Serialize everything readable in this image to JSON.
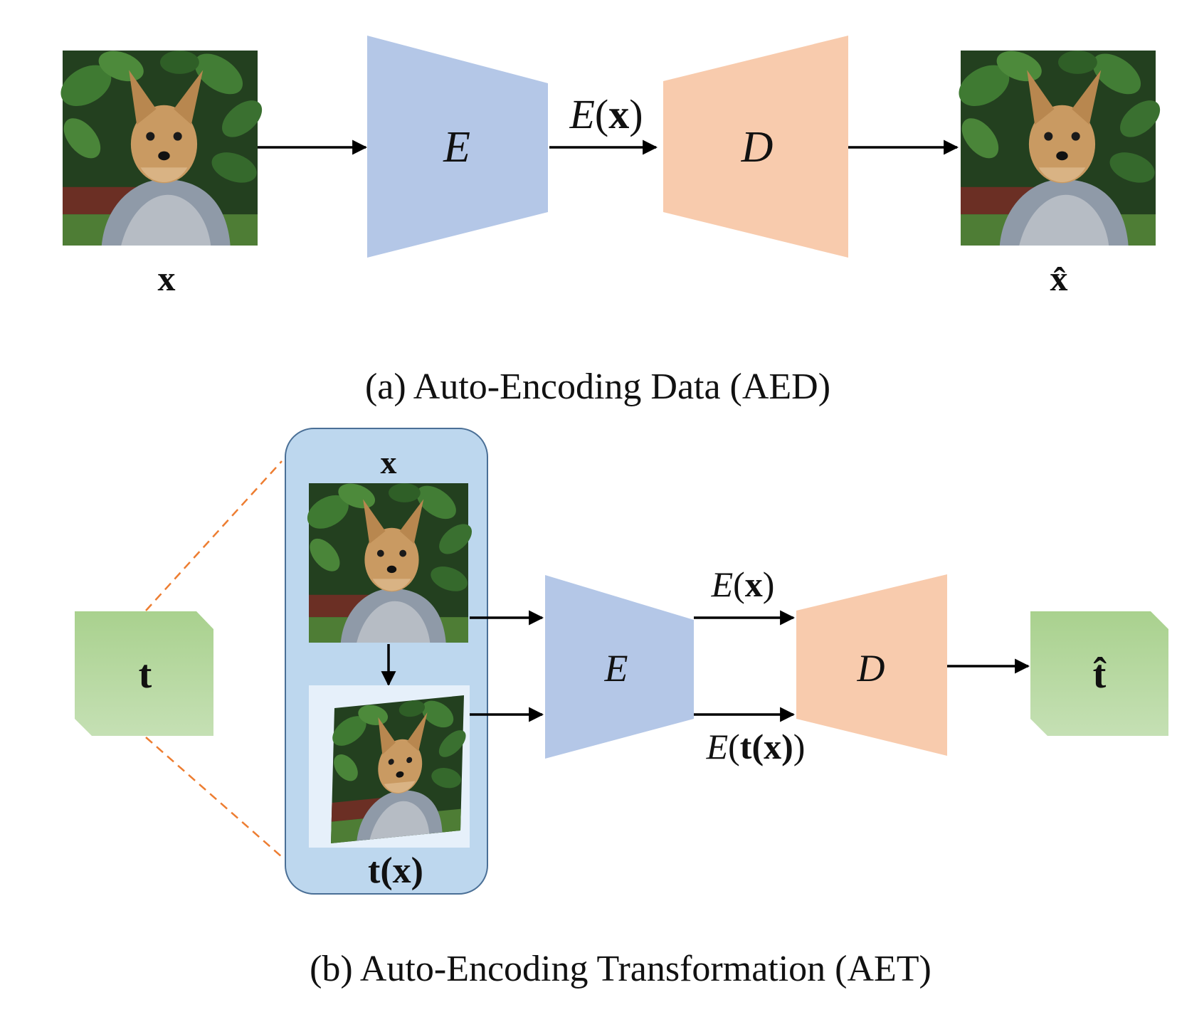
{
  "panel_a": {
    "input_label": "x",
    "encoder_label": "E",
    "latent_label_fn": "E",
    "latent_label_arg": "x",
    "decoder_label": "D",
    "output_label": "x̂",
    "caption": "(a) Auto-Encoding Data (AED)"
  },
  "panel_b": {
    "transform_label": "t",
    "original_label": "x",
    "transformed_fn": "t",
    "transformed_arg": "x",
    "encoder_label": "E",
    "latent_top_fn": "E",
    "latent_top_arg": "x",
    "latent_bottom_fn": "E",
    "latent_bottom_t": "t",
    "latent_bottom_arg": "x",
    "decoder_label": "D",
    "output_label": "t̂",
    "caption": "(b) Auto-Encoding Transformation (AET)"
  },
  "colors": {
    "encoder": "#b4c7e7",
    "decoder": "#f8cbad",
    "transform_box": "#a9d18e",
    "container": "#bdd7ee",
    "container_border": "#4a6f96",
    "dashed_line": "#ed7d31",
    "arrow": "#000000"
  },
  "icons": {
    "dog_photo": "yorkshire-terrier-photo"
  }
}
